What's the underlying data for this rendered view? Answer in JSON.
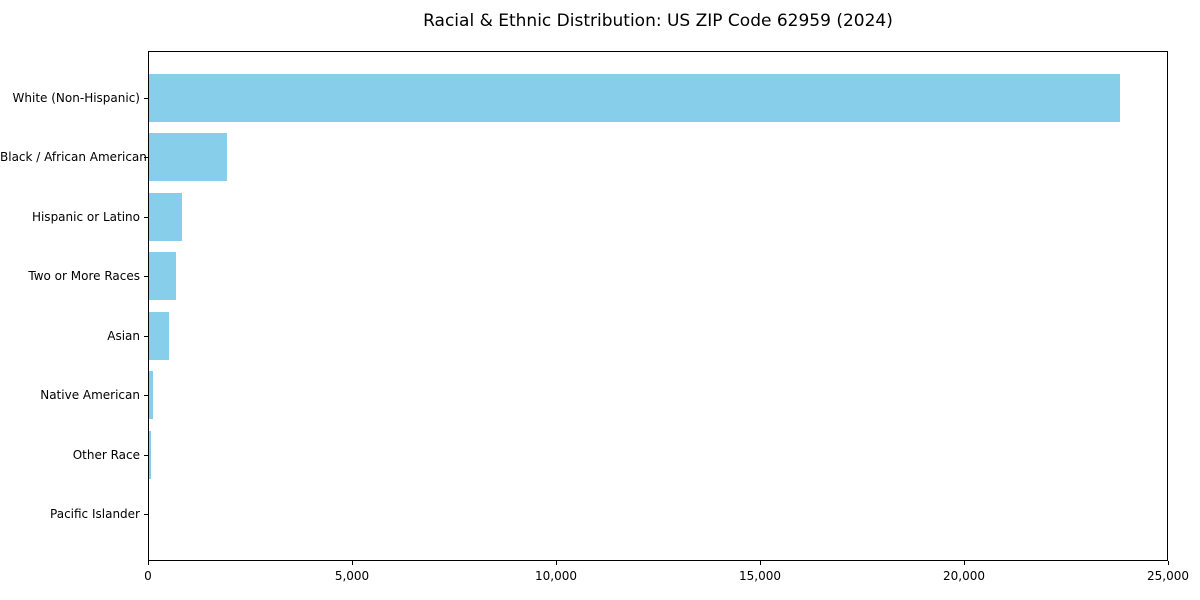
{
  "chart_data": {
    "type": "bar",
    "orientation": "horizontal",
    "title": "Racial & Ethnic Distribution: US ZIP Code 62959 (2024)",
    "categories": [
      "White (Non-Hispanic)",
      "Black / African American",
      "Hispanic or Latino",
      "Two or More Races",
      "Asian",
      "Native American",
      "Other Race",
      "Pacific Islander"
    ],
    "values": [
      23800,
      1900,
      800,
      650,
      500,
      90,
      60,
      0
    ],
    "xlabel": "",
    "ylabel": "",
    "xlim": [
      0,
      25000
    ],
    "xticks": [
      0,
      5000,
      10000,
      15000,
      20000,
      25000
    ],
    "xtick_labels": [
      "0",
      "5,000",
      "10,000",
      "15,000",
      "20,000",
      "25,000"
    ],
    "grid": false,
    "legend": false,
    "bar_height_fraction": 0.8
  },
  "colors": {
    "bar": "#87CEEB",
    "spine": "#000000",
    "text": "#000000",
    "background": "#ffffff"
  }
}
